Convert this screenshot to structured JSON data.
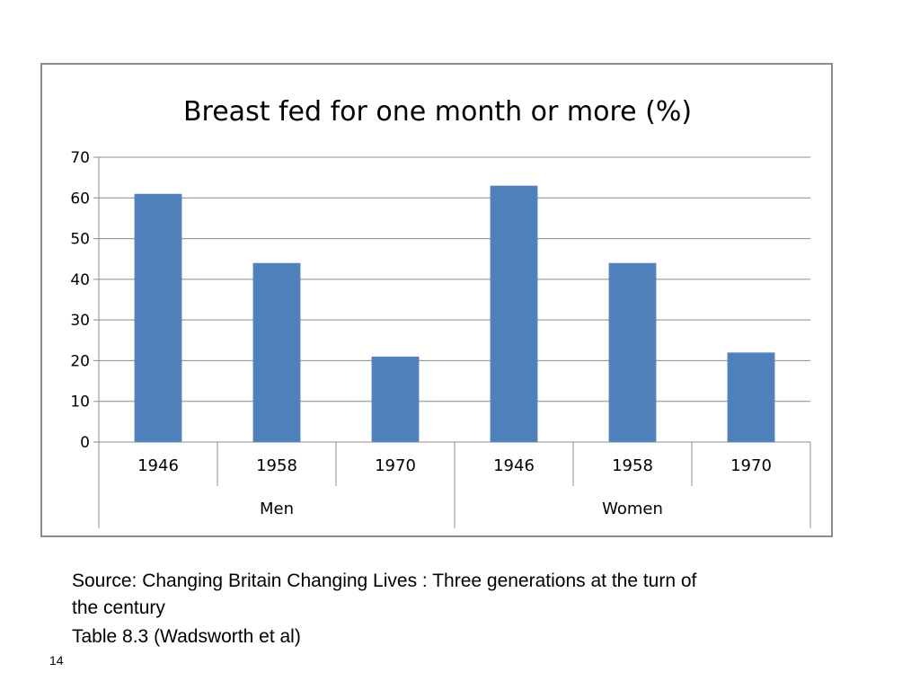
{
  "chart_data": {
    "type": "bar",
    "title": "Breast fed for one month or more (%)",
    "xlabel": "",
    "ylabel": "",
    "ylim": [
      0,
      70
    ],
    "yticks": [
      0,
      10,
      20,
      30,
      40,
      50,
      60,
      70
    ],
    "groups": [
      {
        "label": "Men",
        "categories": [
          "1946",
          "1958",
          "1970"
        ]
      },
      {
        "label": "Women",
        "categories": [
          "1946",
          "1958",
          "1970"
        ]
      }
    ],
    "categories": [
      "1946",
      "1958",
      "1970",
      "1946",
      "1958",
      "1970"
    ],
    "values": [
      61,
      44,
      21,
      63,
      44,
      22
    ],
    "grid": true,
    "legend": "none",
    "bar_color": "#4f81bd"
  },
  "source": {
    "line1": "Source: Changing Britain Changing Lives : Three generations at the turn of",
    "line2": "the century",
    "line3": "Table 8.3 (Wadsworth et al)"
  },
  "slide_number": "14"
}
